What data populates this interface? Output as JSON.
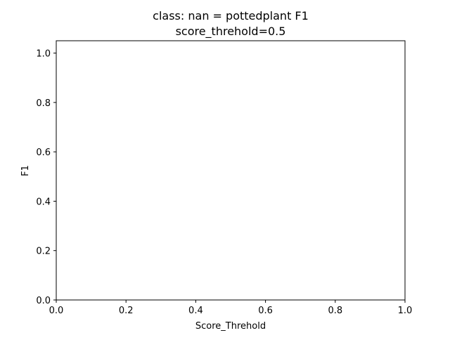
{
  "chart_data": {
    "type": "line",
    "title": "class: nan = pottedplant F1",
    "subtitle": "score_threhold=0.5",
    "xlabel": "Score_Threhold",
    "ylabel": "F1",
    "xlim": [
      0.0,
      1.0
    ],
    "ylim": [
      0.0,
      1.05
    ],
    "xticks": [
      0.0,
      0.2,
      0.4,
      0.6,
      0.8,
      1.0
    ],
    "xtick_labels": [
      "0.0",
      "0.2",
      "0.4",
      "0.6",
      "0.8",
      "1.0"
    ],
    "yticks": [
      0.0,
      0.2,
      0.4,
      0.6,
      0.8,
      1.0
    ],
    "ytick_labels": [
      "0.0",
      "0.2",
      "0.4",
      "0.6",
      "0.8",
      "1.0"
    ],
    "grid": false,
    "series": []
  }
}
